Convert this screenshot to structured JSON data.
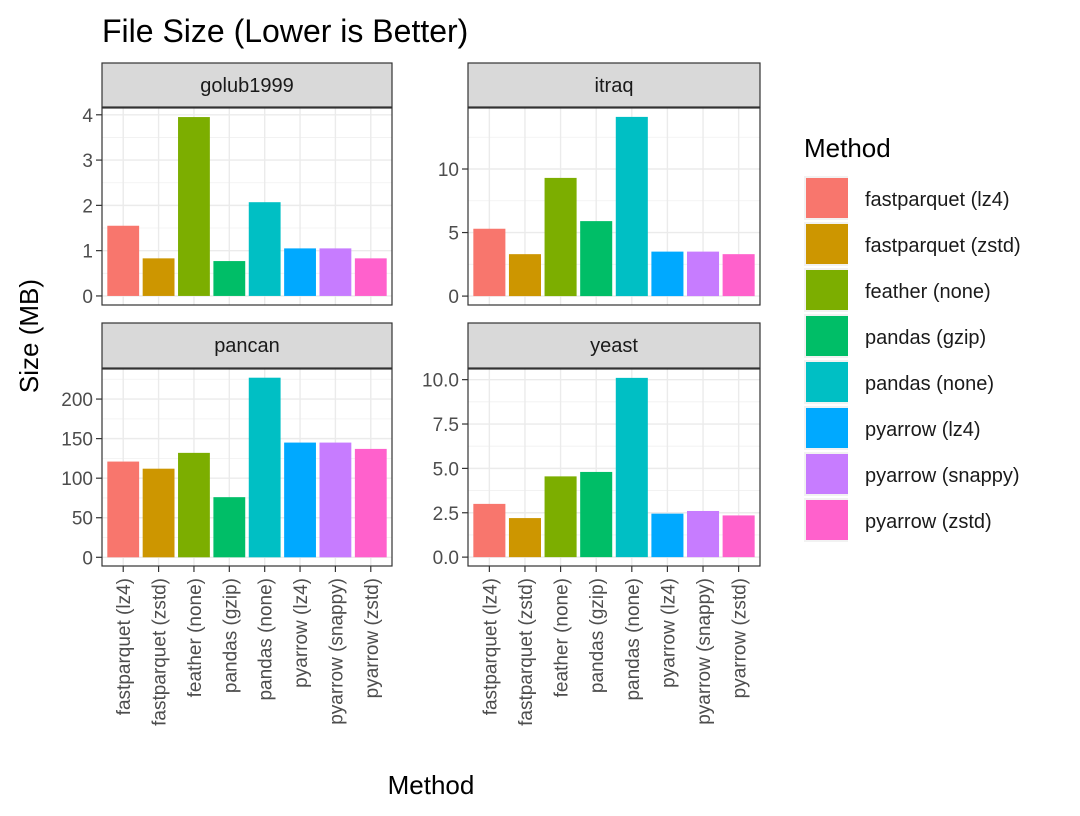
{
  "chart_data": {
    "type": "bar",
    "title": "File Size (Lower is Better)",
    "xlabel": "Method",
    "ylabel": "Size (MB)",
    "legend_title": "Method",
    "legend_position": "right",
    "grid": true,
    "categories": [
      "fastparquet (lz4)",
      "fastparquet (zstd)",
      "feather (none)",
      "pandas (gzip)",
      "pandas (none)",
      "pyarrow (lz4)",
      "pyarrow (snappy)",
      "pyarrow (zstd)"
    ],
    "colors": [
      "#F8766D",
      "#CD9600",
      "#7CAE00",
      "#00BE67",
      "#00BFC4",
      "#00A9FF",
      "#C77CFF",
      "#FF61CC"
    ],
    "panels": [
      {
        "name": "golub1999",
        "values": [
          1.55,
          0.83,
          3.95,
          0.77,
          2.07,
          1.05,
          1.05,
          0.83
        ],
        "ylim": [
          -0.2,
          4.15
        ],
        "yticks": [
          0,
          1,
          2,
          3,
          4
        ],
        "ytick_labels": [
          "0",
          "1",
          "2",
          "3",
          "4"
        ]
      },
      {
        "name": "itraq",
        "values": [
          5.3,
          3.3,
          9.3,
          5.9,
          14.1,
          3.5,
          3.5,
          3.3
        ],
        "ylim": [
          -0.7,
          14.8
        ],
        "yticks": [
          0,
          5,
          10
        ],
        "ytick_labels": [
          "0",
          "5",
          "10"
        ]
      },
      {
        "name": "pancan",
        "values": [
          121,
          112,
          132,
          76,
          227,
          145,
          145,
          137
        ],
        "ylim": [
          -11,
          238
        ],
        "yticks": [
          0,
          50,
          100,
          150,
          200
        ],
        "ytick_labels": [
          "0",
          "50",
          "100",
          "150",
          "200"
        ]
      },
      {
        "name": "yeast",
        "values": [
          3.0,
          2.2,
          4.55,
          4.8,
          10.1,
          2.45,
          2.6,
          2.35
        ],
        "ylim": [
          -0.5,
          10.6
        ],
        "yticks": [
          0,
          2.5,
          5,
          7.5,
          10
        ],
        "ytick_labels": [
          "0.0",
          "2.5",
          "5.0",
          "7.5",
          "10.0"
        ]
      }
    ]
  }
}
